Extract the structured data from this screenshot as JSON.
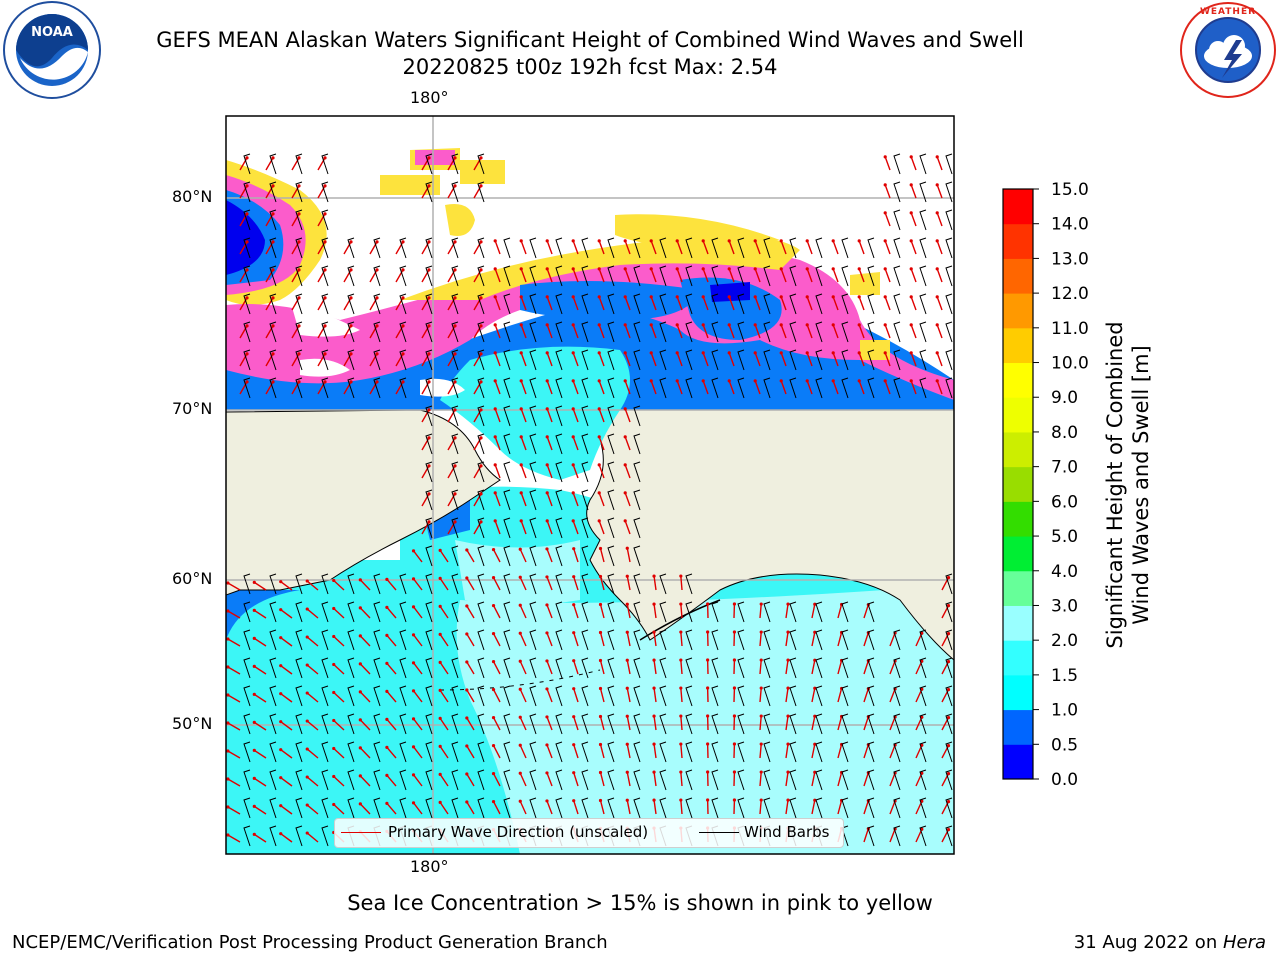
{
  "title": {
    "line1": "GEFS MEAN Alaskan Waters Significant Height of Combined Wind Waves and Swell",
    "line2": "20220825 t00z 192h fcst   Max: 2.54"
  },
  "logos": {
    "noaa": {
      "name": "NOAA",
      "ring_text": "NATIONAL OCEANIC AND ATMOSPHERIC ADMINISTRATION · U.S. DEPARTMENT OF COMMERCE"
    },
    "nws": {
      "ring_text": "NATIONAL WEATHER SERVICE"
    }
  },
  "map": {
    "lon_label_top": "180°",
    "lon_label_bottom": "180°",
    "lat_labels": [
      "80°N",
      "70°N",
      "60°N",
      "50°N"
    ],
    "colors": {
      "land": "#efefdf",
      "ocean_light": "#a8fdfd",
      "ocean_cyan": "#3cf6f6",
      "ocean_blue": "#0a7cf8",
      "deep_blue": "#0000ee",
      "ice_pink": "#fb5ccb",
      "ice_yellow": "#fde33d",
      "gridline": "#b0b0b0",
      "barb": "#000000",
      "arrow": "#e00000"
    }
  },
  "legend": {
    "wave_label": "Primary Wave Direction (unscaled)",
    "barb_label": "Wind Barbs"
  },
  "colorbar": {
    "label_line1": "Significant Height of Combined",
    "label_line2": "Wind Waves and Swell [m]",
    "ticks": [
      "0.0",
      "0.5",
      "1.0",
      "1.5",
      "2.0",
      "3.0",
      "4.0",
      "5.0",
      "6.0",
      "7.0",
      "8.0",
      "9.0",
      "10.0",
      "11.0",
      "12.0",
      "13.0",
      "14.0",
      "15.0"
    ],
    "colors": [
      "#0000ff",
      "#0066ff",
      "#00ffff",
      "#33ffff",
      "#99ffff",
      "#66ff99",
      "#00ee33",
      "#33dd00",
      "#99dd00",
      "#ccee00",
      "#eeff00",
      "#ffff00",
      "#ffcc00",
      "#ff9900",
      "#ff6600",
      "#ff3300",
      "#ff0000"
    ]
  },
  "subtitle": "Sea Ice Concentration > 15% is shown in pink to yellow",
  "footer": {
    "left": "NCEP/EMC/Verification Post Processing Product Generation Branch",
    "right_date": "31 Aug 2022 on ",
    "right_machine": "Hera"
  }
}
